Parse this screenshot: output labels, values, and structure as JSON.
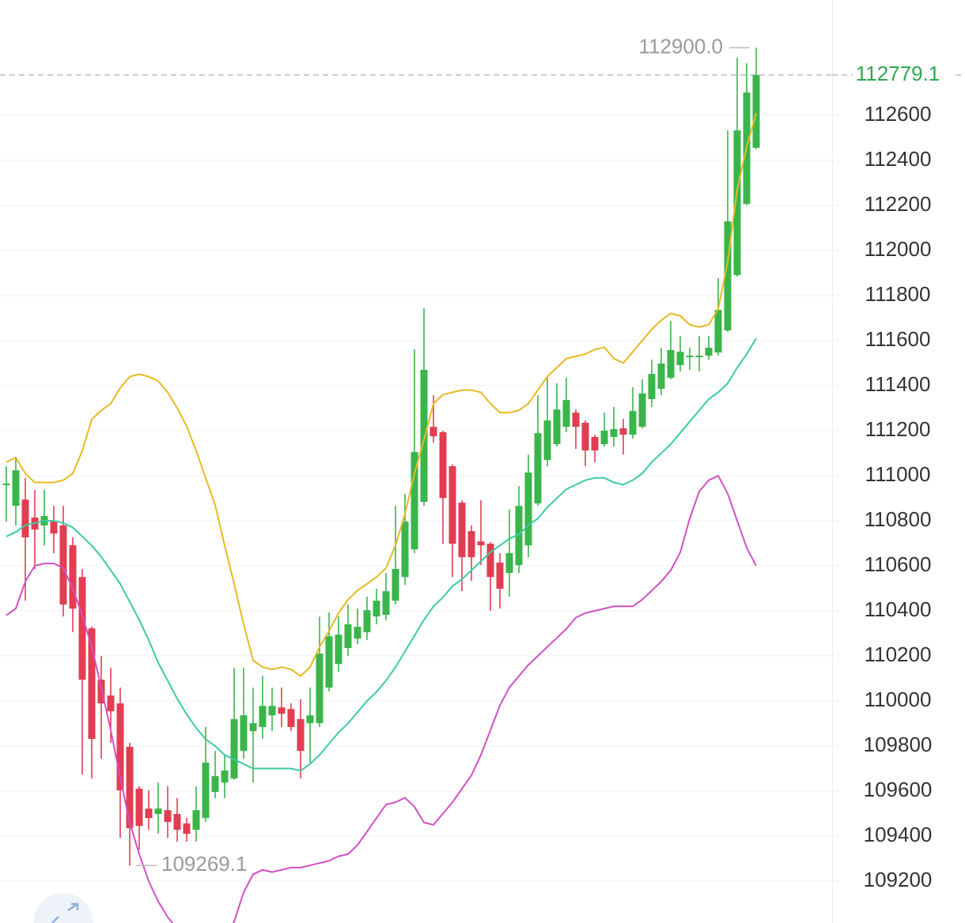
{
  "chart_data": {
    "type": "candlestick",
    "up_color": "#3ab54a",
    "down_color": "#e23d52",
    "ylim": [
      109014,
      113112
    ],
    "yticks": [
      109200,
      109400,
      109600,
      109800,
      110000,
      110200,
      110400,
      110600,
      110800,
      111000,
      111200,
      111400,
      111600,
      111800,
      112000,
      112200,
      112400,
      112600
    ],
    "grid": true,
    "open": [
      110958,
      110866,
      110894,
      110814,
      110779,
      110796,
      110779,
      110691,
      110550,
      110322,
      110094,
      110024,
      109989,
      109796,
      109610,
      109522,
      109498,
      109515,
      109498,
      109456,
      109428,
      109480,
      109596,
      109638,
      109656,
      109778,
      109866,
      109884,
      109936,
      109971,
      109964,
      109919,
      109901,
      109901,
      110059,
      110164,
      110235,
      110277,
      110305,
      110375,
      110382,
      110445,
      110550,
      110673,
      110884,
      111217,
      111193,
      111042,
      110880,
      110754,
      110708,
      110698,
      110614,
      110568,
      110603,
      110691,
      110877,
      111070,
      111140,
      111217,
      111280,
      111235,
      111172,
      111140,
      111172,
      111210,
      111182,
      111217,
      111340,
      111386,
      111435,
      111491,
      111526,
      111526,
      111533,
      111547,
      111645,
      111891,
      112207,
      112456
    ],
    "high": [
      111042,
      111084,
      110989,
      110936,
      110936,
      110866,
      110866,
      110726,
      110586,
      110330,
      110200,
      110147,
      110059,
      109814,
      109621,
      109603,
      109638,
      109621,
      109568,
      109480,
      109621,
      109884,
      109778,
      109761,
      110147,
      110147,
      110059,
      110112,
      110059,
      110059,
      109989,
      110007,
      110059,
      110375,
      110393,
      110375,
      110428,
      110410,
      110463,
      110498,
      110568,
      110866,
      110919,
      111561,
      111743,
      111357,
      111200,
      111050,
      110890,
      110779,
      110891,
      110705,
      110656,
      110849,
      110954,
      111094,
      111357,
      111435,
      111410,
      111435,
      111294,
      111245,
      111182,
      111280,
      111305,
      111252,
      111393,
      111428,
      111515,
      111568,
      111687,
      111621,
      111568,
      111621,
      111621,
      111877,
      112533,
      112856,
      112831,
      112900
    ],
    "low": [
      110796,
      110779,
      110445,
      110586,
      110691,
      110656,
      110375,
      110305,
      109673,
      109656,
      109743,
      109814,
      109392,
      109269.1,
      109340,
      109428,
      109410,
      109392,
      109375,
      109375,
      109375,
      109463,
      109568,
      109568,
      109650,
      109743,
      109638,
      109831,
      109866,
      109884,
      109866,
      109656,
      109726,
      109884,
      110042,
      110129,
      110200,
      110252,
      110270,
      110340,
      110357,
      110428,
      110515,
      110656,
      110866,
      111147,
      110698,
      110550,
      110487,
      110533,
      110603,
      110400,
      110410,
      110463,
      110568,
      110638,
      110866,
      111042,
      111129,
      111193,
      111119,
      111042,
      111059,
      111129,
      111129,
      111094,
      111165,
      111210,
      111305,
      111357,
      111428,
      111463,
      111470,
      111463,
      111515,
      111533,
      111638,
      111884,
      112200,
      112450
    ],
    "close": [
      110965,
      111024,
      110726,
      110761,
      110821,
      110743,
      110428,
      110410,
      110094,
      109831,
      109989,
      109954,
      109603,
      109435,
      109445,
      109480,
      109522,
      109463,
      109428,
      109410,
      109515,
      109726,
      109666,
      109691,
      109919,
      109936,
      109901,
      109978,
      109978,
      109943,
      109884,
      109778,
      109936,
      110210,
      110287,
      110294,
      110340,
      110329,
      110403,
      110445,
      110487,
      110586,
      110796,
      111105,
      111470,
      111175,
      110901,
      110698,
      110638,
      110638,
      110691,
      110550,
      110498,
      110656,
      110866,
      111014,
      111189,
      111245,
      111294,
      111336,
      111217,
      111112,
      111112,
      111200,
      111207,
      111182,
      111287,
      111365,
      111452,
      111498,
      111558,
      111550,
      111533,
      111533,
      111568,
      111736,
      112129,
      112533,
      112701,
      112779.1
    ],
    "lines": [
      {
        "color": "#e8b923",
        "values": [
          111060,
          111080,
          111010,
          110970,
          110970,
          110970,
          110980,
          111010,
          111110,
          111250,
          111290,
          111320,
          111390,
          111440,
          111450,
          111440,
          111420,
          111370,
          111300,
          111220,
          111110,
          110990,
          110870,
          110690,
          110520,
          110340,
          110180,
          110150,
          110140,
          110150,
          110140,
          110110,
          110150,
          110240,
          110310,
          110390,
          110450,
          110490,
          110520,
          110550,
          110590,
          110690,
          110830,
          111010,
          111160,
          111320,
          111360,
          111370,
          111380,
          111380,
          111370,
          111320,
          111280,
          111280,
          111290,
          111320,
          111380,
          111440,
          111480,
          111520,
          111530,
          111540,
          111560,
          111570,
          111520,
          111500,
          111550,
          111600,
          111650,
          111690,
          111720,
          111710,
          111670,
          111660,
          111670,
          111740,
          111950,
          112270,
          112460,
          112610
        ]
      },
      {
        "color": "#3ccaa5",
        "values": [
          110730,
          110750,
          110780,
          110790,
          110800,
          110800,
          110790,
          110770,
          110730,
          110690,
          110640,
          110580,
          110520,
          110440,
          110360,
          110270,
          110170,
          110090,
          110010,
          109940,
          109880,
          109830,
          109800,
          109760,
          109740,
          109720,
          109700,
          109700,
          109700,
          109700,
          109700,
          109690,
          109720,
          109760,
          109810,
          109860,
          109900,
          109950,
          110000,
          110040,
          110090,
          110150,
          110220,
          110290,
          110360,
          110420,
          110460,
          110510,
          110540,
          110580,
          110620,
          110660,
          110690,
          110720,
          110740,
          110780,
          110810,
          110860,
          110900,
          110940,
          110960,
          110980,
          110990,
          110990,
          110970,
          110960,
          110980,
          111010,
          111060,
          111100,
          111140,
          111190,
          111240,
          111290,
          111340,
          111370,
          111410,
          111480,
          111540,
          111610
        ]
      },
      {
        "color": "#d24fc4",
        "values": [
          110380,
          110410,
          110530,
          110600,
          110610,
          110610,
          110590,
          110500,
          110380,
          110240,
          110060,
          109870,
          109660,
          109460,
          109320,
          109200,
          109110,
          109040,
          108990,
          108940,
          108900,
          108880,
          108900,
          108950,
          109020,
          109150,
          109230,
          109250,
          109240,
          109250,
          109260,
          109260,
          109270,
          109280,
          109290,
          109310,
          109320,
          109360,
          109420,
          109480,
          109540,
          109550,
          109570,
          109530,
          109460,
          109450,
          109500,
          109550,
          109610,
          109670,
          109760,
          109870,
          109980,
          110060,
          110110,
          110160,
          110200,
          110240,
          110280,
          110320,
          110370,
          110390,
          110400,
          110410,
          110420,
          110420,
          110420,
          110450,
          110490,
          110530,
          110580,
          110660,
          110810,
          110930,
          110980,
          111000,
          110920,
          110800,
          110680,
          110600
        ]
      }
    ],
    "last_price": 112779.1,
    "annotations": [
      {
        "value": 112900,
        "label": "112900.0"
      },
      109269.1
    ]
  }
}
